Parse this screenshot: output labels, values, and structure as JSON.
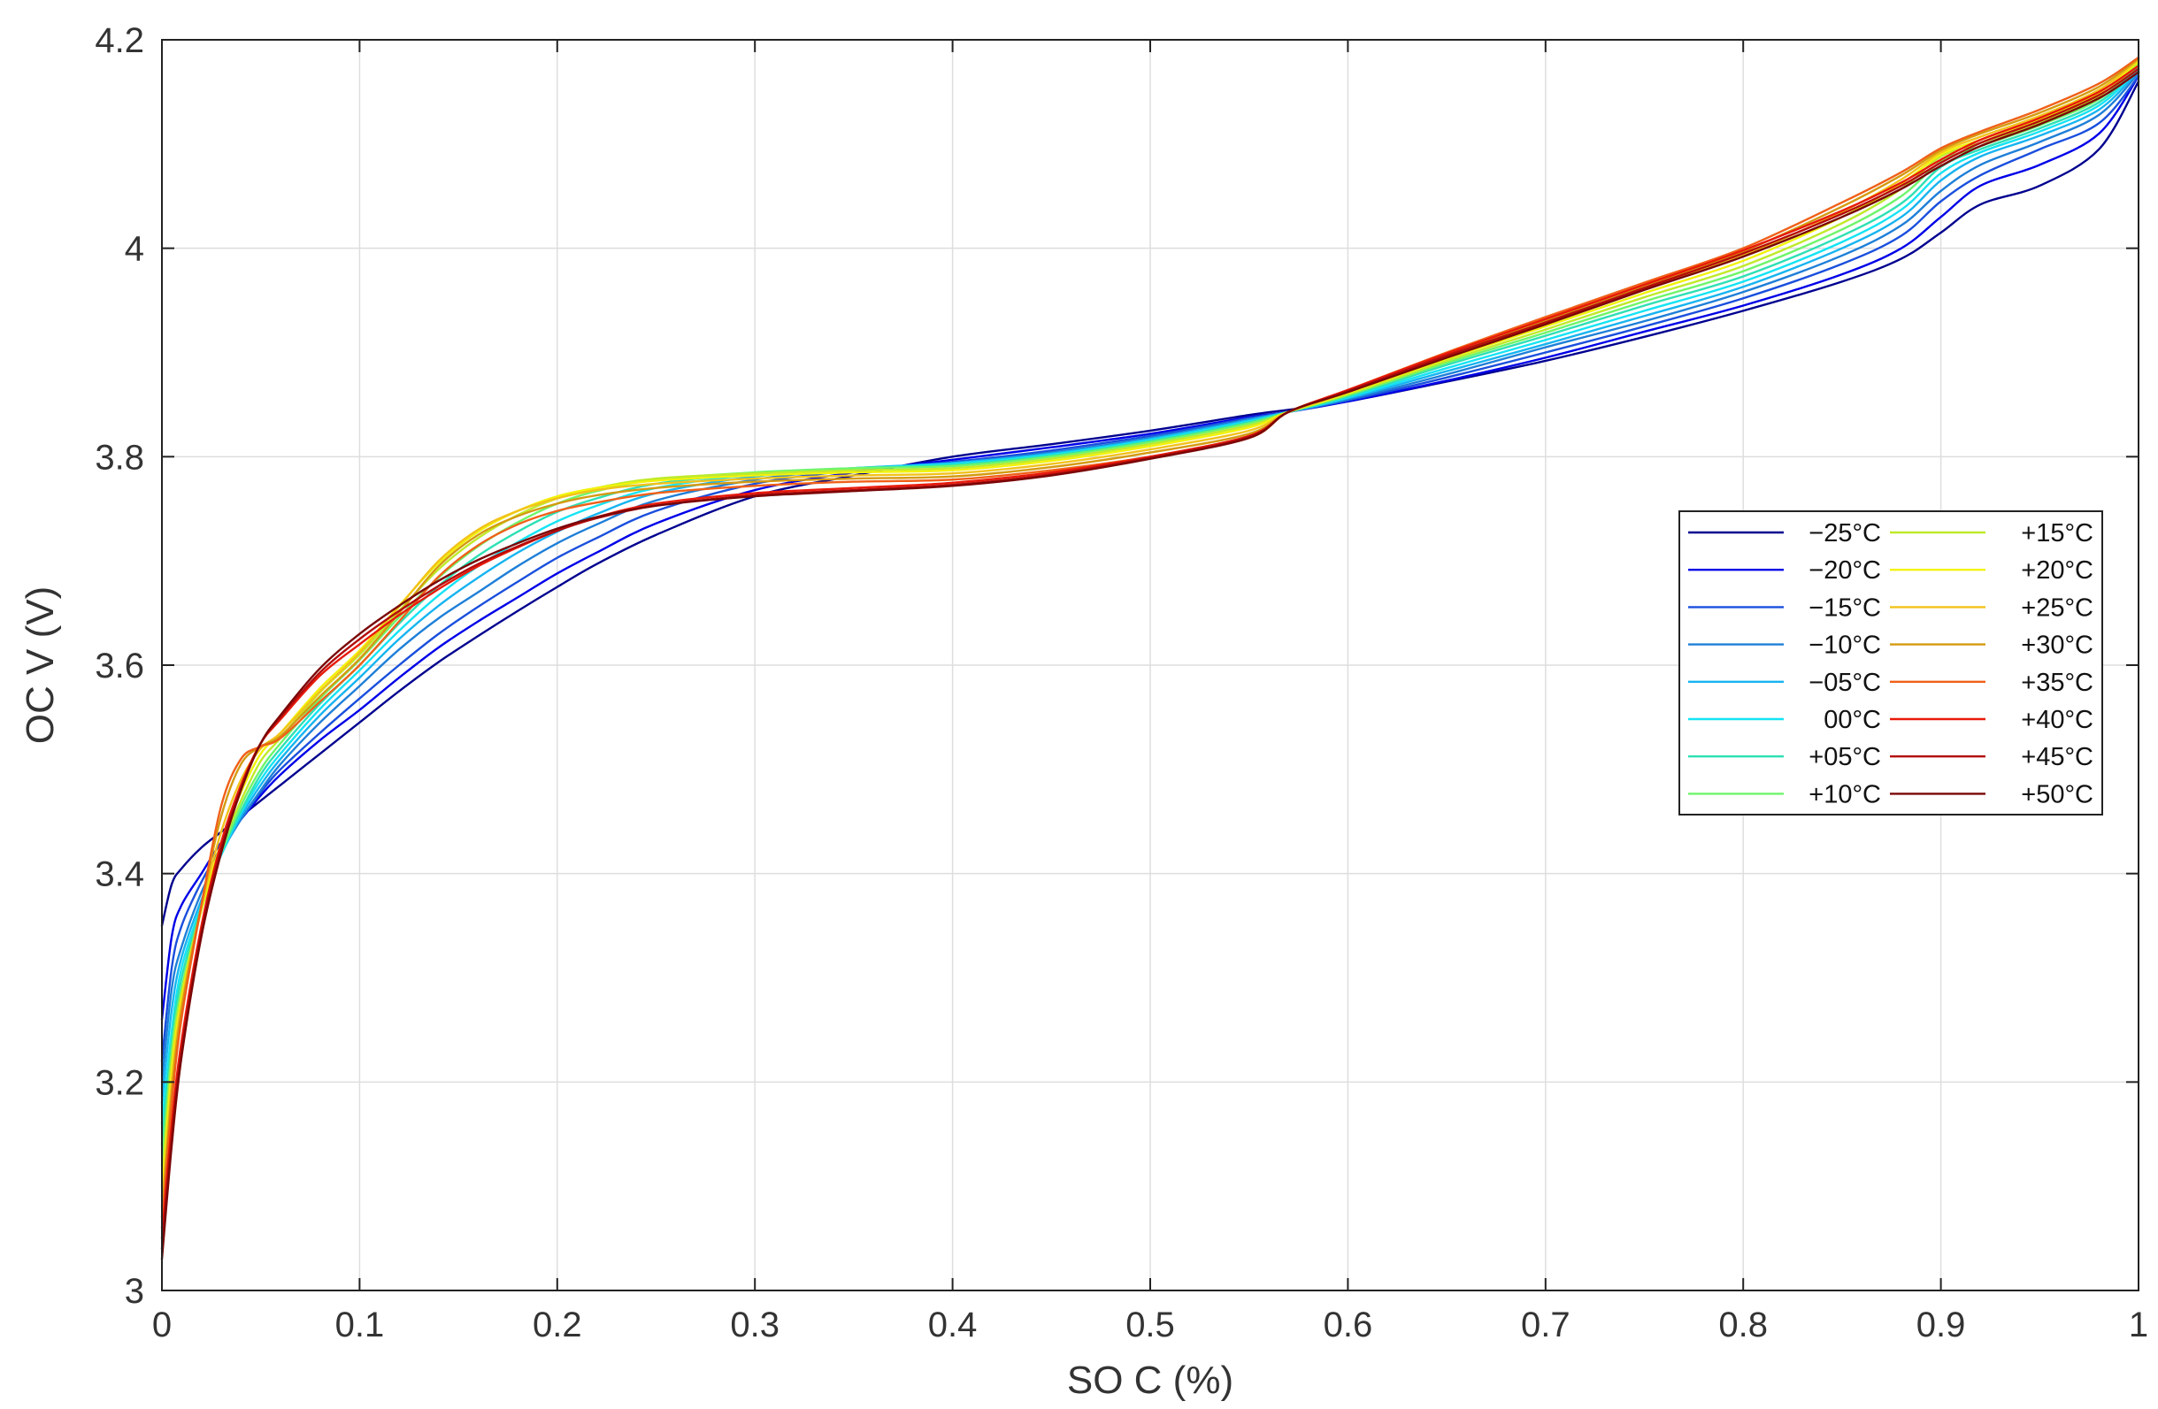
{
  "chart_data": {
    "type": "line",
    "title": "",
    "xlabel": "SO C  (%)",
    "ylabel": "OC V  (V)",
    "xlim": [
      0,
      1
    ],
    "ylim": [
      3.0,
      4.2
    ],
    "x_ticks": [
      {
        "value": 0,
        "label": "0"
      },
      {
        "value": 0.1,
        "label": "0.1"
      },
      {
        "value": 0.2,
        "label": "0.2"
      },
      {
        "value": 0.3,
        "label": "0.3"
      },
      {
        "value": 0.4,
        "label": "0.4"
      },
      {
        "value": 0.5,
        "label": "0.5"
      },
      {
        "value": 0.6,
        "label": "0.6"
      },
      {
        "value": 0.7,
        "label": "0.7"
      },
      {
        "value": 0.8,
        "label": "0.8"
      },
      {
        "value": 0.9,
        "label": "0.9"
      },
      {
        "value": 1,
        "label": "1"
      }
    ],
    "y_ticks": [
      {
        "value": 3.0,
        "label": "3"
      },
      {
        "value": 3.2,
        "label": "3.2"
      },
      {
        "value": 3.4,
        "label": "3.4"
      },
      {
        "value": 3.6,
        "label": "3.6"
      },
      {
        "value": 3.8,
        "label": "3.8"
      },
      {
        "value": 4.0,
        "label": "4"
      },
      {
        "value": 4.2,
        "label": "4.2"
      }
    ],
    "grid": true,
    "legend_position": "right",
    "x": [
      0,
      0.005,
      0.01,
      0.02,
      0.03,
      0.04,
      0.05,
      0.06,
      0.08,
      0.1,
      0.12,
      0.14,
      0.16,
      0.18,
      0.2,
      0.22,
      0.25,
      0.3,
      0.35,
      0.4,
      0.45,
      0.5,
      0.55,
      0.57,
      0.6,
      0.65,
      0.7,
      0.75,
      0.8,
      0.85,
      0.88,
      0.9,
      0.92,
      0.95,
      0.98,
      1.0
    ],
    "series": [
      {
        "name": "−25°C",
        "color": "#00008f",
        "y": [
          3.35,
          3.39,
          3.405,
          3.425,
          3.44,
          3.455,
          3.47,
          3.485,
          3.515,
          3.545,
          3.575,
          3.603,
          3.628,
          3.652,
          3.675,
          3.697,
          3.725,
          3.762,
          3.782,
          3.8,
          3.812,
          3.825,
          3.84,
          3.845,
          3.853,
          3.872,
          3.892,
          3.915,
          3.94,
          3.968,
          3.99,
          4.015,
          4.042,
          4.06,
          4.095,
          4.16
        ]
      },
      {
        "name": "−20°C",
        "color": "#0000e8",
        "y": [
          3.26,
          3.34,
          3.37,
          3.4,
          3.43,
          3.452,
          3.475,
          3.495,
          3.528,
          3.557,
          3.588,
          3.617,
          3.642,
          3.665,
          3.688,
          3.708,
          3.736,
          3.768,
          3.785,
          3.797,
          3.809,
          3.822,
          3.838,
          3.843,
          3.853,
          3.873,
          3.895,
          3.92,
          3.945,
          3.975,
          4.0,
          4.03,
          4.06,
          4.08,
          4.11,
          4.165
        ]
      },
      {
        "name": "−15°C",
        "color": "#1a4fdd",
        "y": [
          3.22,
          3.31,
          3.35,
          3.392,
          3.425,
          3.452,
          3.478,
          3.5,
          3.535,
          3.568,
          3.6,
          3.63,
          3.656,
          3.68,
          3.703,
          3.722,
          3.748,
          3.774,
          3.787,
          3.795,
          3.806,
          3.82,
          3.837,
          3.843,
          3.854,
          3.876,
          3.9,
          3.925,
          3.952,
          3.985,
          4.012,
          4.045,
          4.07,
          4.095,
          4.12,
          4.165
        ]
      },
      {
        "name": "−10°C",
        "color": "#1e7fd8",
        "y": [
          3.2,
          3.29,
          3.33,
          3.382,
          3.42,
          3.452,
          3.48,
          3.505,
          3.545,
          3.58,
          3.615,
          3.645,
          3.67,
          3.695,
          3.717,
          3.735,
          3.758,
          3.778,
          3.788,
          3.794,
          3.804,
          3.818,
          3.836,
          3.843,
          3.855,
          3.879,
          3.905,
          3.93,
          3.958,
          3.993,
          4.022,
          4.055,
          4.08,
          4.102,
          4.128,
          4.168
        ]
      },
      {
        "name": "−05°C",
        "color": "#16b4f0",
        "y": [
          3.18,
          3.27,
          3.32,
          3.375,
          3.418,
          3.455,
          3.485,
          3.51,
          3.552,
          3.588,
          3.625,
          3.657,
          3.684,
          3.708,
          3.728,
          3.745,
          3.765,
          3.781,
          3.789,
          3.794,
          3.803,
          3.817,
          3.835,
          3.843,
          3.856,
          3.882,
          3.908,
          3.935,
          3.963,
          4.0,
          4.03,
          4.065,
          4.088,
          4.108,
          4.133,
          4.17
        ]
      },
      {
        "name": "00°C",
        "color": "#14e4f4",
        "y": [
          3.16,
          3.25,
          3.31,
          3.37,
          3.418,
          3.458,
          3.49,
          3.515,
          3.558,
          3.595,
          3.633,
          3.667,
          3.695,
          3.718,
          3.738,
          3.753,
          3.77,
          3.783,
          3.789,
          3.793,
          3.802,
          3.816,
          3.834,
          3.843,
          3.857,
          3.885,
          3.912,
          3.94,
          3.968,
          4.006,
          4.037,
          4.072,
          4.092,
          4.112,
          4.137,
          4.172
        ]
      },
      {
        "name": "+05°C",
        "color": "#2ee0b4",
        "y": [
          3.14,
          3.24,
          3.3,
          3.368,
          3.42,
          3.46,
          3.495,
          3.52,
          3.563,
          3.6,
          3.64,
          3.676,
          3.705,
          3.728,
          3.747,
          3.76,
          3.774,
          3.784,
          3.789,
          3.792,
          3.801,
          3.815,
          3.833,
          3.843,
          3.858,
          3.888,
          3.916,
          3.945,
          3.973,
          4.012,
          4.043,
          4.078,
          4.095,
          4.115,
          4.14,
          4.174
        ]
      },
      {
        "name": "+10°C",
        "color": "#6ef56a",
        "y": [
          3.12,
          3.23,
          3.29,
          3.365,
          3.42,
          3.465,
          3.5,
          3.525,
          3.568,
          3.605,
          3.646,
          3.684,
          3.714,
          3.737,
          3.755,
          3.767,
          3.778,
          3.785,
          3.789,
          3.791,
          3.8,
          3.814,
          3.832,
          3.843,
          3.859,
          3.89,
          3.919,
          3.949,
          3.978,
          4.018,
          4.05,
          4.083,
          4.098,
          4.118,
          4.143,
          4.176
        ]
      },
      {
        "name": "+15°C",
        "color": "#c0ea2a",
        "y": [
          3.1,
          3.22,
          3.285,
          3.365,
          3.425,
          3.47,
          3.508,
          3.53,
          3.574,
          3.61,
          3.652,
          3.692,
          3.722,
          3.744,
          3.76,
          3.77,
          3.779,
          3.784,
          3.787,
          3.789,
          3.798,
          3.812,
          3.83,
          3.843,
          3.86,
          3.892,
          3.922,
          3.953,
          3.983,
          4.024,
          4.057,
          4.088,
          4.101,
          4.121,
          4.146,
          4.178
        ]
      },
      {
        "name": "+20°C",
        "color": "#f2f20a",
        "y": [
          3.09,
          3.21,
          3.28,
          3.365,
          3.43,
          3.478,
          3.515,
          3.535,
          3.578,
          3.614,
          3.657,
          3.698,
          3.728,
          3.748,
          3.762,
          3.77,
          3.777,
          3.782,
          3.785,
          3.787,
          3.796,
          3.81,
          3.828,
          3.843,
          3.861,
          3.894,
          3.925,
          3.957,
          3.988,
          4.03,
          4.062,
          4.09,
          4.104,
          4.124,
          4.149,
          4.18
        ]
      },
      {
        "name": "+25°C",
        "color": "#f2c21a",
        "y": [
          3.08,
          3.2,
          3.275,
          3.368,
          3.44,
          3.49,
          3.52,
          3.535,
          3.575,
          3.612,
          3.656,
          3.7,
          3.73,
          3.748,
          3.76,
          3.768,
          3.774,
          3.779,
          3.782,
          3.784,
          3.793,
          3.807,
          3.825,
          3.843,
          3.862,
          3.896,
          3.928,
          3.961,
          3.993,
          4.035,
          4.066,
          4.092,
          4.107,
          4.127,
          4.152,
          4.181
        ]
      },
      {
        "name": "+30°C",
        "color": "#d49a10",
        "y": [
          3.07,
          3.19,
          3.27,
          3.37,
          3.455,
          3.505,
          3.522,
          3.532,
          3.57,
          3.606,
          3.65,
          3.695,
          3.725,
          3.743,
          3.755,
          3.763,
          3.77,
          3.776,
          3.779,
          3.781,
          3.79,
          3.804,
          3.822,
          3.843,
          3.863,
          3.898,
          3.931,
          3.964,
          3.997,
          4.04,
          4.07,
          4.094,
          4.11,
          4.13,
          4.155,
          4.182
        ]
      },
      {
        "name": "+35°C",
        "color": "#f06018",
        "y": [
          3.06,
          3.18,
          3.262,
          3.37,
          3.465,
          3.51,
          3.522,
          3.53,
          3.565,
          3.6,
          3.642,
          3.685,
          3.715,
          3.735,
          3.748,
          3.756,
          3.765,
          3.772,
          3.776,
          3.778,
          3.787,
          3.8,
          3.818,
          3.843,
          3.864,
          3.9,
          3.934,
          3.967,
          4.0,
          4.044,
          4.073,
          4.096,
          4.112,
          4.133,
          4.158,
          4.183
        ]
      },
      {
        "name": "+40°C",
        "color": "#e81a0a",
        "y": [
          3.05,
          3.16,
          3.24,
          3.35,
          3.43,
          3.485,
          3.525,
          3.548,
          3.59,
          3.62,
          3.648,
          3.673,
          3.695,
          3.713,
          3.729,
          3.742,
          3.755,
          3.765,
          3.77,
          3.775,
          3.785,
          3.8,
          3.82,
          3.843,
          3.864,
          3.899,
          3.932,
          3.965,
          3.998,
          4.036,
          4.063,
          4.085,
          4.104,
          4.125,
          4.15,
          4.175
        ]
      },
      {
        "name": "+45°C",
        "color": "#b40c0c",
        "y": [
          3.04,
          3.15,
          3.232,
          3.345,
          3.425,
          3.482,
          3.525,
          3.55,
          3.593,
          3.625,
          3.652,
          3.676,
          3.697,
          3.714,
          3.729,
          3.741,
          3.753,
          3.763,
          3.768,
          3.773,
          3.783,
          3.799,
          3.819,
          3.843,
          3.863,
          3.897,
          3.929,
          3.962,
          3.995,
          4.033,
          4.06,
          4.082,
          4.101,
          4.122,
          4.147,
          4.172
        ]
      },
      {
        "name": "+50°C",
        "color": "#7a0606",
        "y": [
          3.03,
          3.14,
          3.225,
          3.34,
          3.42,
          3.48,
          3.525,
          3.552,
          3.597,
          3.63,
          3.657,
          3.681,
          3.701,
          3.717,
          3.731,
          3.742,
          3.753,
          3.762,
          3.767,
          3.772,
          3.782,
          3.798,
          3.818,
          3.843,
          3.862,
          3.895,
          3.927,
          3.96,
          3.992,
          4.03,
          4.057,
          4.079,
          4.098,
          4.119,
          4.144,
          4.169
        ]
      }
    ]
  }
}
